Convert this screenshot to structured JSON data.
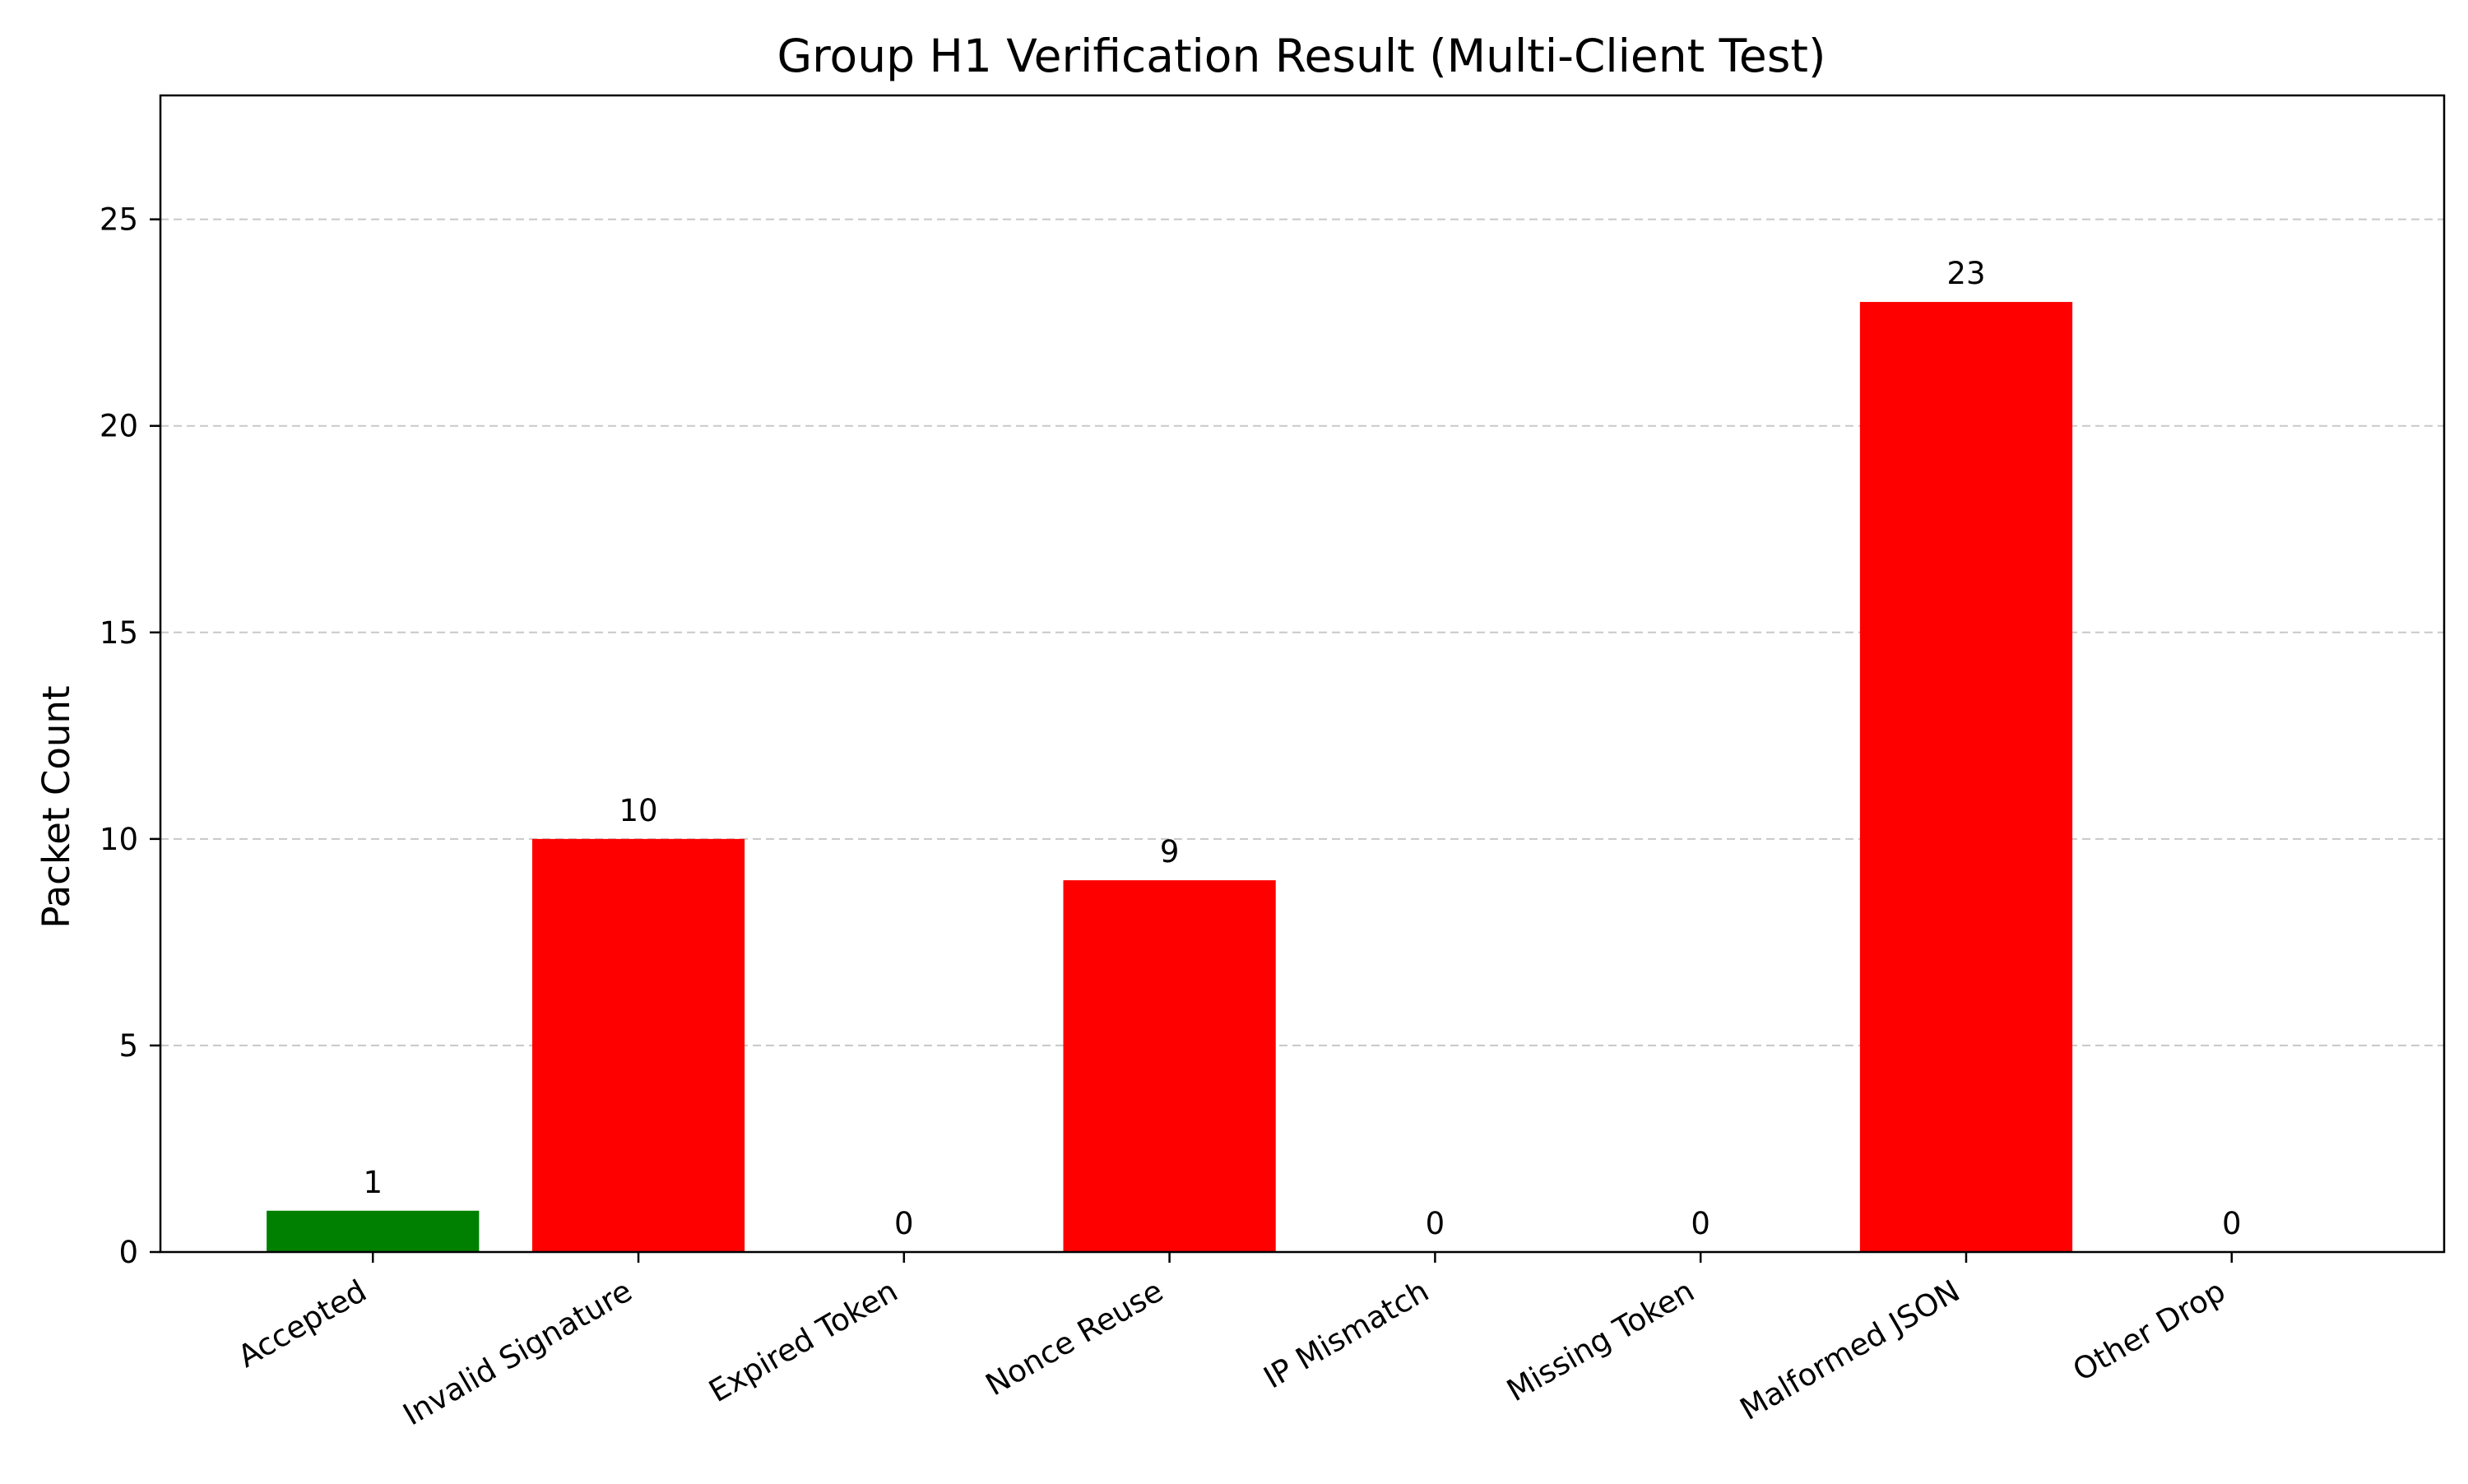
{
  "chart_data": {
    "type": "bar",
    "title": "Group H1 Verification Result (Multi-Client Test)",
    "xlabel": "",
    "ylabel": "Packet Count",
    "categories": [
      "Accepted",
      "Invalid Signature",
      "Expired Token",
      "Nonce Reuse",
      "IP Mismatch",
      "Missing Token",
      "Malformed JSON",
      "Other Drop"
    ],
    "values": [
      1,
      10,
      0,
      9,
      0,
      0,
      23,
      0
    ],
    "bar_colors": [
      "#008000",
      "#ff0000",
      "#ff0000",
      "#ff0000",
      "#ff0000",
      "#ff0000",
      "#ff0000",
      "#ff0000"
    ],
    "yticks": [
      0,
      5,
      10,
      15,
      20,
      25
    ],
    "ylim": [
      0,
      28
    ],
    "grid": "y-dashed",
    "legend": "none",
    "data_labels": [
      "1",
      "10",
      "0",
      "9",
      "0",
      "0",
      "23",
      "0"
    ]
  }
}
